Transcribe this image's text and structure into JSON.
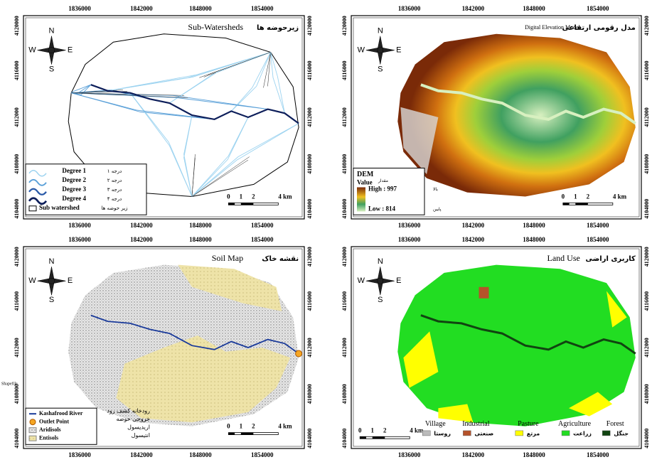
{
  "grid": {
    "x_ticks": [
      "1836000",
      "1842000",
      "1848000",
      "1854000"
    ],
    "y_ticks": [
      "4104000",
      "4108000",
      "4112000",
      "4116000",
      "4120000"
    ]
  },
  "north_arrow": {
    "n": "N",
    "s": "S",
    "w": "W",
    "e": "E"
  },
  "scale_bar": [
    "0",
    "1",
    "2",
    "4 km"
  ],
  "panels": [
    {
      "title_en": "Sub-Watersheds",
      "title_fa": "زیرحوضه ها",
      "legend": [
        {
          "en": "Degree 1",
          "fa": "درجه ۱"
        },
        {
          "en": "Degree 2",
          "fa": "درجه ۲"
        },
        {
          "en": "Degree 3",
          "fa": "درجه ۳"
        },
        {
          "en": "Degree 4",
          "fa": "درجه ۴"
        },
        {
          "en": "Sub watershed",
          "fa": "زیر حوضه ها"
        }
      ]
    },
    {
      "title_en": "Digital Elevation Model",
      "title_fa": "مدل رقومی ارتفاعی",
      "legend": {
        "title": "DEM",
        "value": "Value",
        "value_fa": "مقدار",
        "high": "High : 997",
        "high_fa": "بالا",
        "low": "Low : 814",
        "low_fa": "پایین"
      }
    },
    {
      "title_en": "Soil Map",
      "title_fa": "نقشه خاک",
      "side_note": "Shapefile",
      "legend": [
        {
          "en": "Kashafrood River",
          "fa": "رودخانه کشف رود"
        },
        {
          "en": "Outlet Point",
          "fa": "خروجی حوضه"
        },
        {
          "en": "Aridisols",
          "fa": "اریدیسول"
        },
        {
          "en": "Entisols",
          "fa": "انتیسول"
        }
      ]
    },
    {
      "title_en": "Land Use",
      "title_fa": "کاربری اراضی",
      "legend": [
        {
          "en": "Village",
          "fa": "روستا"
        },
        {
          "en": "Industrial",
          "fa": "صنعتی"
        },
        {
          "en": "Pasture",
          "fa": "مرتع"
        },
        {
          "en": "Agriculture",
          "fa": "زراعت"
        },
        {
          "en": "Forest",
          "fa": "جنگل"
        }
      ]
    }
  ]
}
